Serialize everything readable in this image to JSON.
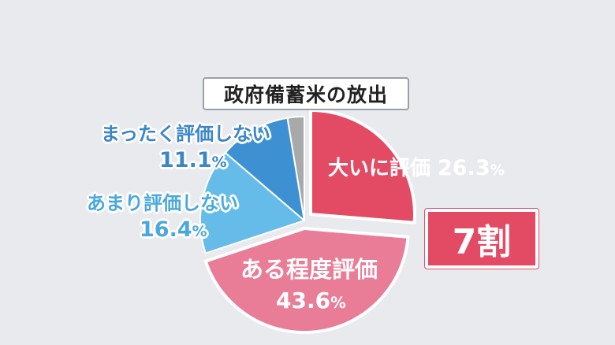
{
  "chart_data": {
    "type": "pie",
    "title": "政府備蓄米の放出",
    "slices": [
      {
        "label": "大いに評価",
        "value": 26.3,
        "value_text": "26.3",
        "color": "#e34a64"
      },
      {
        "label": "ある程度評価",
        "value": 43.6,
        "value_text": "43.6",
        "color": "#e97d97"
      },
      {
        "label": "あまり評価しない",
        "value": 16.4,
        "value_text": "16.4",
        "color": "#65bce9"
      },
      {
        "label": "まったく評価しない",
        "value": 11.1,
        "value_text": "11.1",
        "color": "#3d91d3"
      },
      {
        "label": "",
        "value": 2.6,
        "value_text": "",
        "color": "#a8a9ab"
      }
    ],
    "unit": "%",
    "start_angle": "12 o'clock",
    "direction": "clockwise",
    "annotation": "7割"
  }
}
